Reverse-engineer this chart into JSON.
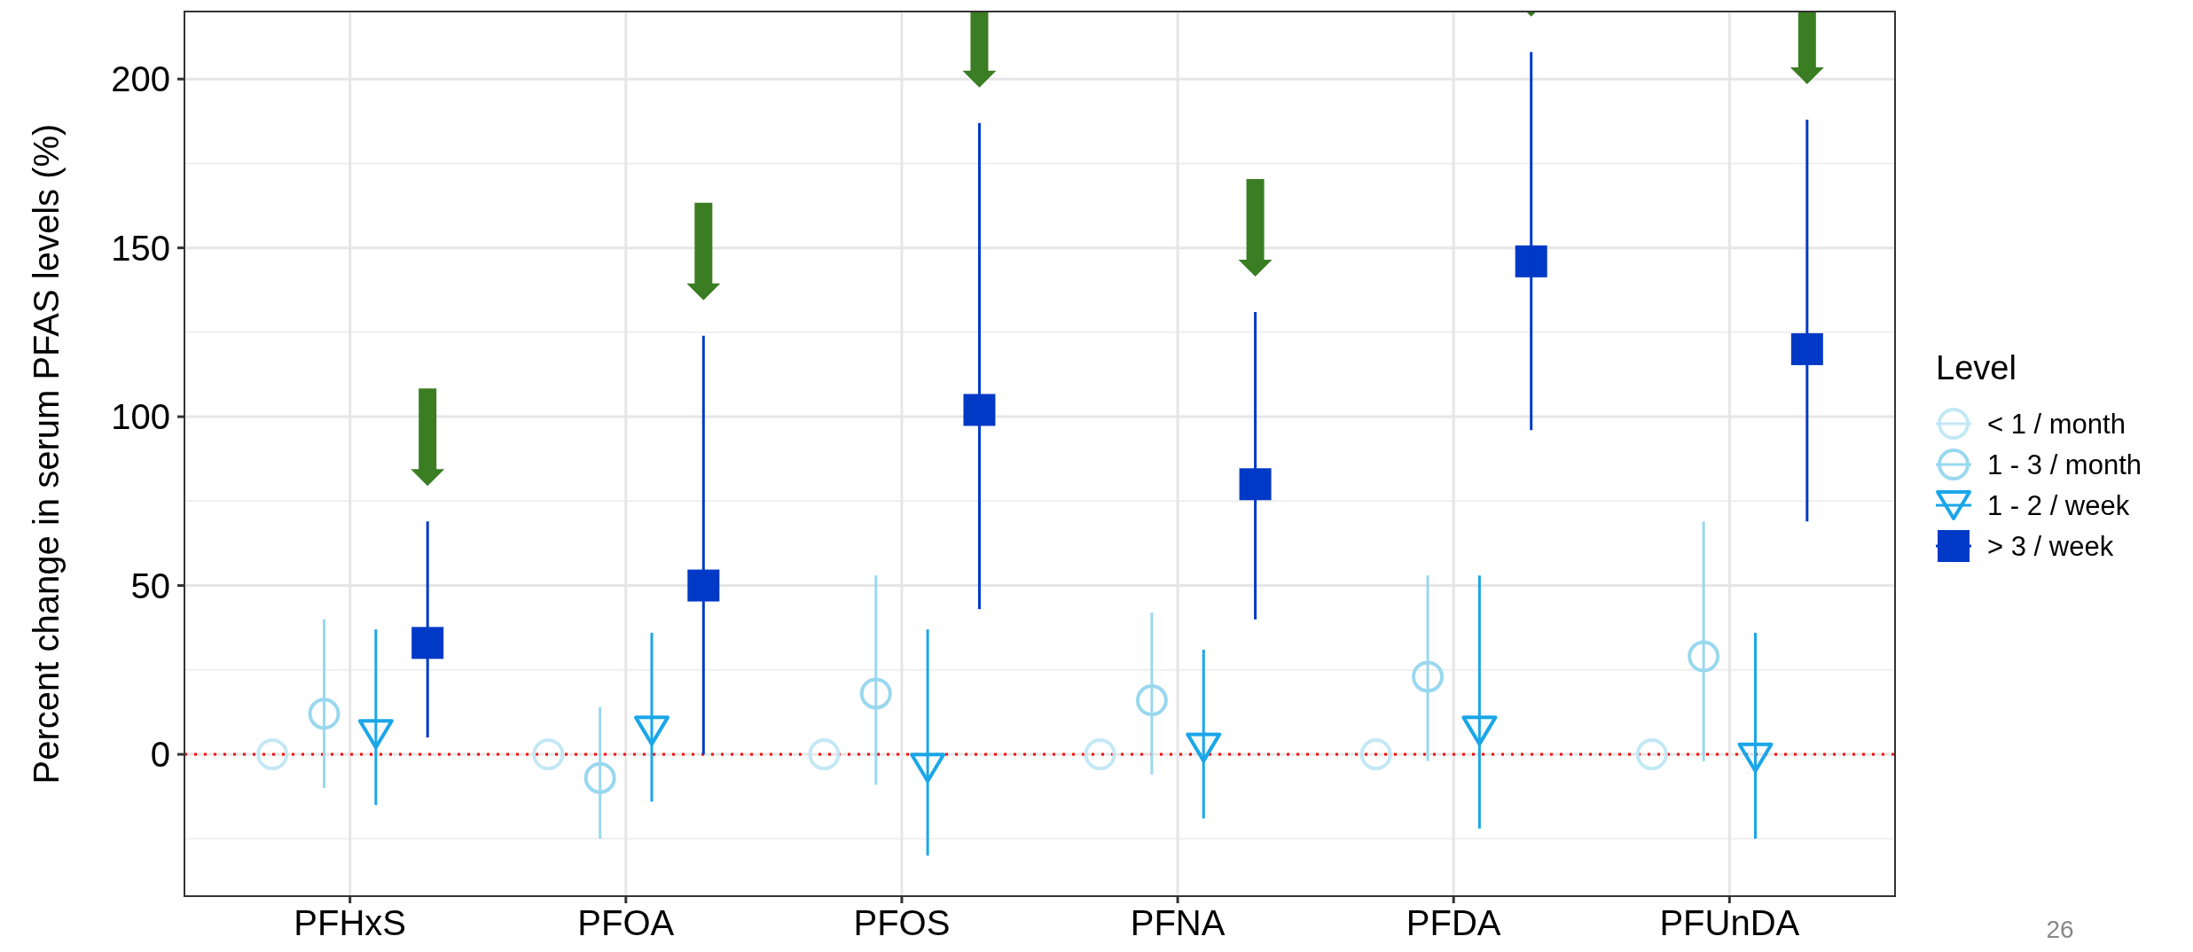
{
  "chart_data": {
    "type": "scatter",
    "ylabel": "Percent change in serum PFAS levels (%)",
    "legend_title": "Level",
    "categories": [
      "PFHxS",
      "PFOA",
      "PFOS",
      "PFNA",
      "PFDA",
      "PFUnDA"
    ],
    "series": [
      {
        "name": "< 1 / month",
        "color": "#c3e8f5",
        "marker": "circle",
        "values": [
          0,
          0,
          0,
          0,
          0,
          0
        ]
      },
      {
        "name": "1 - 3 / month",
        "color": "#99d8ef",
        "marker": "circle",
        "values": [
          12,
          -7,
          18,
          16,
          23,
          29
        ],
        "errors": [
          [
            -10,
            40
          ],
          [
            -25,
            14
          ],
          [
            -9,
            53
          ],
          [
            -6,
            42
          ],
          [
            -2,
            53
          ],
          [
            -2,
            69
          ]
        ]
      },
      {
        "name": "1 - 2 / week",
        "color": "#1aa6e8",
        "marker": "triangle",
        "values": [
          6,
          7,
          -4,
          2,
          7,
          -1
        ],
        "errors": [
          [
            -15,
            37
          ],
          [
            -14,
            36
          ],
          [
            -30,
            37
          ],
          [
            -19,
            31
          ],
          [
            -22,
            53
          ],
          [
            -25,
            36
          ]
        ]
      },
      {
        "name": "> 3 / week",
        "color": "#0039c6",
        "marker": "square",
        "values": [
          33,
          50,
          102,
          80,
          146,
          120
        ],
        "errors": [
          [
            5,
            69
          ],
          [
            0,
            124
          ],
          [
            43,
            187
          ],
          [
            40,
            131
          ],
          [
            96,
            208
          ],
          [
            69,
            188
          ]
        ]
      }
    ],
    "ylim": [
      -42,
      220
    ],
    "yticks": [
      0,
      50,
      100,
      150,
      200
    ],
    "grid": true,
    "legend": "right",
    "ref_lines": [
      {
        "axis": "y",
        "value": 0,
        "color": "#ff0000",
        "line_style": "dotted"
      }
    ],
    "annotations": [
      "26"
    ]
  }
}
